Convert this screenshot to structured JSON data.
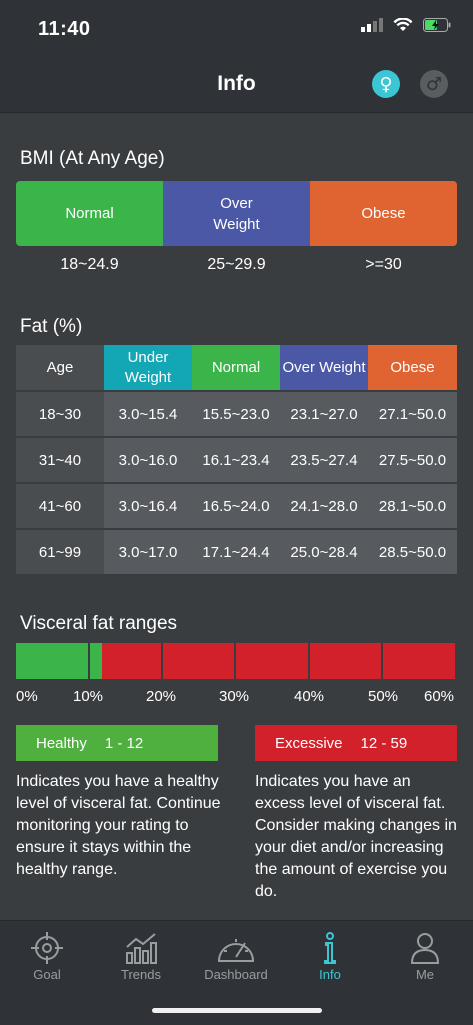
{
  "status": {
    "time": "11:40"
  },
  "header": {
    "title": "Info"
  },
  "colors": {
    "green": "#3bb54a",
    "blue": "#4a58a6",
    "orange": "#e06432",
    "teal": "#13a6b4",
    "red": "#d3212b",
    "legend_green": "#4fb040",
    "accent": "#3cc6d3"
  },
  "bmi": {
    "title": "BMI (At Any Age)",
    "categories": [
      {
        "label": "Normal",
        "range": "18~24.9"
      },
      {
        "label": "Over\nWeight",
        "range": "25~29.9"
      },
      {
        "label": "Obese",
        "range": ">=30"
      }
    ]
  },
  "fat": {
    "title": "Fat (%)",
    "headers": [
      "Age",
      "Under Weight",
      "Normal",
      "Over Weight",
      "Obese"
    ],
    "rows": [
      [
        "18~30",
        "3.0~15.4",
        "15.5~23.0",
        "23.1~27.0",
        "27.1~50.0"
      ],
      [
        "31~40",
        "3.0~16.0",
        "16.1~23.4",
        "23.5~27.4",
        "27.5~50.0"
      ],
      [
        "41~60",
        "3.0~16.4",
        "16.5~24.0",
        "24.1~28.0",
        "28.1~50.0"
      ],
      [
        "61~99",
        "3.0~17.0",
        "17.1~24.4",
        "25.0~28.4",
        "28.5~50.0"
      ]
    ]
  },
  "visceral": {
    "title": "Visceral fat ranges",
    "ticks": [
      "0%",
      "10%",
      "20%",
      "30%",
      "40%",
      "50%",
      "60%"
    ],
    "healthy": {
      "label": "Healthy",
      "range": "1 - 12",
      "description": "Indicates you have a healthy level of visceral fat. Continue monitoring your rating to ensure it stays within the healthy range."
    },
    "excessive": {
      "label": "Excessive",
      "range": "12 - 59",
      "description": "Indicates you have an excess level of visceral fat. Consider making changes in your diet and/or increasing the amount of exercise you do."
    }
  },
  "tabs": [
    {
      "label": "Goal",
      "icon": "target-icon"
    },
    {
      "label": "Trends",
      "icon": "trends-icon"
    },
    {
      "label": "Dashboard",
      "icon": "gauge-icon"
    },
    {
      "label": "Info",
      "icon": "info-icon",
      "active": true
    },
    {
      "label": "Me",
      "icon": "person-icon"
    }
  ]
}
